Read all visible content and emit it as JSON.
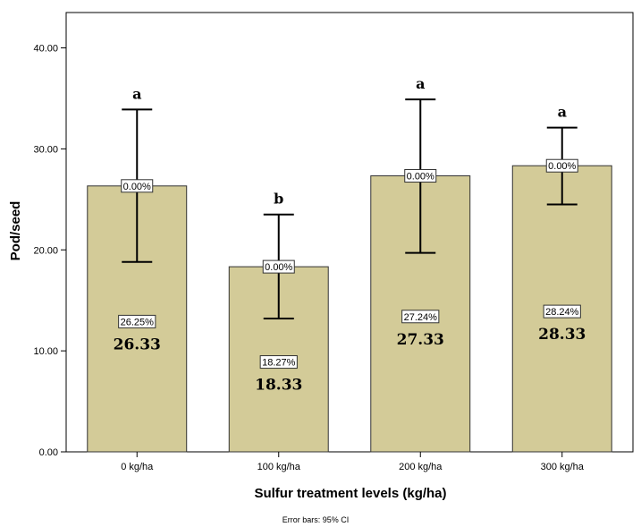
{
  "chart_data": {
    "type": "bar",
    "xlabel": "Sulfur treatment levels (kg/ha)",
    "ylabel": "Pod/seed",
    "categories": [
      "0 kg/ha",
      "100 kg/ha",
      "200 kg/ha",
      "300 kg/ha"
    ],
    "values": [
      26.33,
      18.33,
      27.33,
      28.33
    ],
    "value_labels": [
      "26.33",
      "18.33",
      "27.33",
      "28.33"
    ],
    "percent_labels": [
      "26.25%",
      "18.27%",
      "27.24%",
      "28.24%"
    ],
    "top_percent_labels": [
      "0.00%",
      "0.00%",
      "0.00%",
      "0.00%"
    ],
    "error_upper": [
      33.9,
      23.5,
      34.9,
      32.1
    ],
    "error_lower": [
      18.8,
      13.2,
      19.7,
      24.5
    ],
    "significance_letters": [
      "a",
      "b",
      "a",
      "a"
    ],
    "ylim": [
      0,
      43.5
    ],
    "yticks": [
      0,
      10,
      20,
      30,
      40
    ],
    "ytick_labels": [
      "0.00",
      "10.00",
      "20.00",
      "30.00",
      "40.00"
    ],
    "footnote": "Error bars: 95% CI",
    "grid": false,
    "colors": {
      "bar_fill": "#d3cb98",
      "bar_stroke": "#333333",
      "error_bar": "#000000",
      "label_box_fill": "#ffffff"
    }
  }
}
